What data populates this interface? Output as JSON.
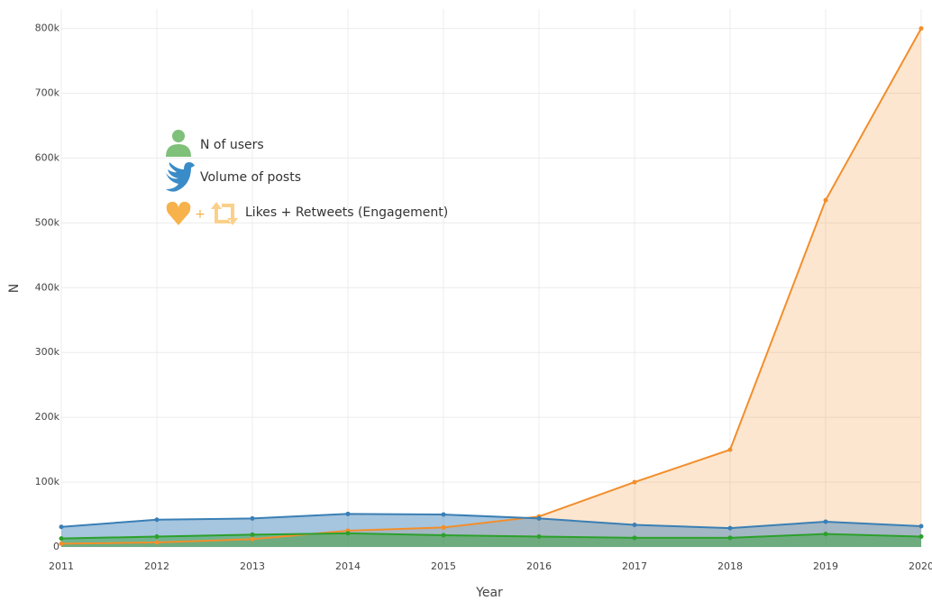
{
  "chart_data": {
    "type": "area",
    "x_label": "Year",
    "y_label": "N",
    "x": [
      2011,
      2012,
      2013,
      2014,
      2015,
      2016,
      2017,
      2018,
      2019,
      2020
    ],
    "xlim": [
      2011,
      2020
    ],
    "xticks": [
      2011,
      2012,
      2013,
      2014,
      2015,
      2016,
      2017,
      2018,
      2019,
      2020
    ],
    "ylim": [
      0,
      830000
    ],
    "yticks": [
      {
        "value": 0,
        "label": "0"
      },
      {
        "value": 100000,
        "label": "100k"
      },
      {
        "value": 200000,
        "label": "200k"
      },
      {
        "value": 300000,
        "label": "300k"
      },
      {
        "value": 400000,
        "label": "400k"
      },
      {
        "value": 500000,
        "label": "500k"
      },
      {
        "value": 600000,
        "label": "600k"
      },
      {
        "value": 700000,
        "label": "700k"
      },
      {
        "value": 800000,
        "label": "800k"
      }
    ],
    "grid": true,
    "series": [
      {
        "name": "Likes + Retweets (Engagement)",
        "color": "#f28e2b",
        "values": [
          5000,
          7000,
          12000,
          25000,
          30000,
          47000,
          100000,
          150000,
          535000,
          800000
        ]
      },
      {
        "name": "Volume of posts",
        "color": "#3a7fb5",
        "values": [
          31000,
          42000,
          44000,
          51000,
          50000,
          44000,
          34000,
          29000,
          39000,
          32000
        ]
      },
      {
        "name": "N of users",
        "color": "#2ca02c",
        "values": [
          13000,
          16000,
          19000,
          21000,
          18000,
          16000,
          14000,
          14000,
          20000,
          16000
        ]
      }
    ]
  }
}
